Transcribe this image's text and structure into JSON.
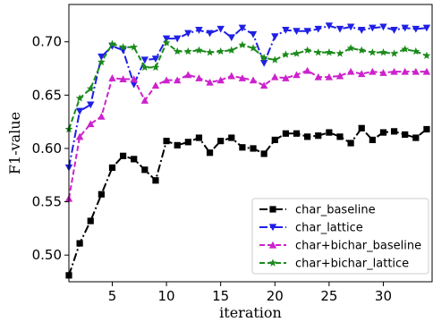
{
  "chart_data": {
    "type": "line",
    "xlabel": "iteration",
    "ylabel": "F1-value",
    "xlim": [
      1,
      34.5
    ],
    "ylim": [
      0.475,
      0.735
    ],
    "x_ticks": [
      5,
      10,
      15,
      20,
      25,
      30
    ],
    "y_ticks": [
      0.5,
      0.55,
      0.6,
      0.65,
      0.7
    ],
    "y_tick_labels": [
      "0.50",
      "0.55",
      "0.60",
      "0.65",
      "0.70"
    ],
    "x": [
      1,
      2,
      3,
      4,
      5,
      6,
      7,
      8,
      9,
      10,
      11,
      12,
      13,
      14,
      15,
      16,
      17,
      18,
      19,
      20,
      21,
      22,
      23,
      24,
      25,
      26,
      27,
      28,
      29,
      30,
      31,
      32,
      33,
      34
    ],
    "legend_position": "lower-right",
    "grid": false,
    "series": [
      {
        "name": "char_baseline",
        "color": "#000000",
        "marker": "square",
        "dash": "dashdot",
        "values": [
          0.481,
          0.511,
          0.532,
          0.557,
          0.582,
          0.593,
          0.59,
          0.58,
          0.57,
          0.607,
          0.603,
          0.606,
          0.61,
          0.596,
          0.607,
          0.61,
          0.601,
          0.6,
          0.595,
          0.608,
          0.614,
          0.614,
          0.611,
          0.612,
          0.615,
          0.611,
          0.605,
          0.619,
          0.608,
          0.615,
          0.616,
          0.613,
          0.61,
          0.618
        ]
      },
      {
        "name": "char_lattice",
        "color": "#1f1fe6",
        "marker": "triangle-down",
        "dash": "dashdot",
        "values": [
          0.582,
          0.635,
          0.641,
          0.686,
          0.696,
          0.692,
          0.66,
          0.683,
          0.684,
          0.703,
          0.703,
          0.708,
          0.711,
          0.708,
          0.712,
          0.704,
          0.713,
          0.707,
          0.68,
          0.705,
          0.711,
          0.71,
          0.71,
          0.712,
          0.715,
          0.712,
          0.714,
          0.711,
          0.713,
          0.714,
          0.711,
          0.713,
          0.712,
          0.713
        ]
      },
      {
        "name": "char+bichar_baseline",
        "color": "#cc22cc",
        "marker": "triangle-up",
        "dash": "dashed",
        "values": [
          0.553,
          0.611,
          0.623,
          0.63,
          0.666,
          0.665,
          0.665,
          0.645,
          0.659,
          0.664,
          0.664,
          0.669,
          0.666,
          0.662,
          0.664,
          0.668,
          0.666,
          0.664,
          0.659,
          0.667,
          0.666,
          0.669,
          0.673,
          0.667,
          0.667,
          0.668,
          0.672,
          0.67,
          0.672,
          0.671,
          0.672,
          0.672,
          0.672,
          0.672
        ]
      },
      {
        "name": "char+bichar_lattice",
        "color": "#1a8a1a",
        "marker": "star",
        "dash": "dashed",
        "values": [
          0.618,
          0.647,
          0.656,
          0.681,
          0.698,
          0.695,
          0.695,
          0.676,
          0.676,
          0.699,
          0.691,
          0.691,
          0.692,
          0.69,
          0.691,
          0.692,
          0.697,
          0.694,
          0.685,
          0.683,
          0.688,
          0.689,
          0.692,
          0.69,
          0.69,
          0.689,
          0.694,
          0.692,
          0.69,
          0.69,
          0.689,
          0.693,
          0.691,
          0.687
        ]
      }
    ]
  }
}
